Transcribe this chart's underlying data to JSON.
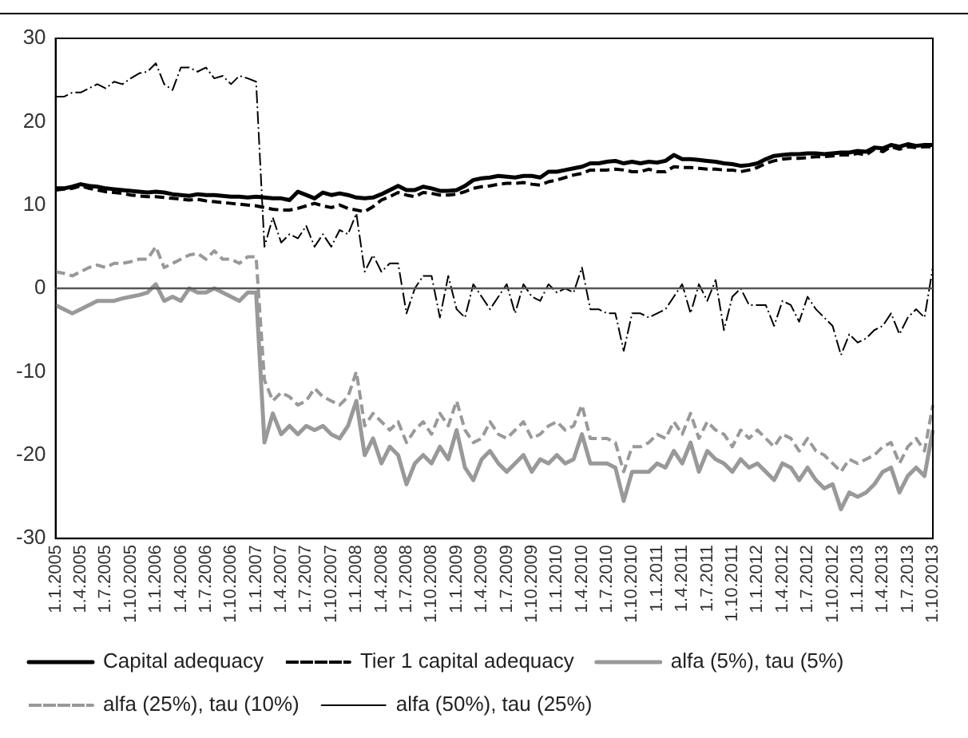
{
  "chart_data": {
    "type": "line",
    "categories": [
      "1.1.2005",
      null,
      null,
      "1.4.2005",
      null,
      null,
      "1.7.2005",
      null,
      null,
      "1.10.2005",
      null,
      null,
      "1.1.2006",
      null,
      null,
      "1.4.2006",
      null,
      null,
      "1.7.2006",
      null,
      null,
      "1.10.2006",
      null,
      null,
      "1.1.2007",
      null,
      null,
      "1.4.2007",
      null,
      null,
      "1.7.2007",
      null,
      null,
      "1.10.2007",
      null,
      null,
      "1.1.2008",
      null,
      null,
      "1.4.2008",
      null,
      null,
      "1.7.2008",
      null,
      null,
      "1.10.2008",
      null,
      null,
      "1.1.2009",
      null,
      null,
      "1.4.2009",
      null,
      null,
      "1.7.2009",
      null,
      null,
      "1.10.2009",
      null,
      null,
      "1.1.2010",
      null,
      null,
      "1.4.2010",
      null,
      null,
      "1.7.2010",
      null,
      null,
      "1.10.2010",
      null,
      null,
      "1.1.2011",
      null,
      null,
      "1.4.2011",
      null,
      null,
      "1.7.2011",
      null,
      null,
      "1.10.2011",
      null,
      null,
      "1.1.2012",
      null,
      null,
      "1.4.2012",
      null,
      null,
      "1.7.2012",
      null,
      null,
      "1.10.2012",
      null,
      null,
      "1.1.2013",
      null,
      null,
      "1.4.2013",
      null,
      null,
      "1.7.2013",
      null,
      null,
      "1.10.2013"
    ],
    "series": [
      {
        "name": "Capital adequacy",
        "color": "#000000",
        "line_style": "solid",
        "values": [
          12,
          12,
          12.2,
          12.5,
          12.3,
          12.2,
          12,
          11.9,
          11.8,
          11.7,
          11.6,
          11.5,
          11.6,
          11.5,
          11.3,
          11.2,
          11.1,
          11.3,
          11.2,
          11.2,
          11.1,
          11,
          11,
          10.9,
          11,
          10.9,
          10.8,
          10.8,
          10.6,
          11.6,
          11.2,
          10.8,
          11.5,
          11.2,
          11.4,
          11.2,
          10.9,
          10.8,
          10.9,
          11.3,
          11.8,
          12.3,
          11.8,
          11.8,
          12.2,
          12,
          11.7,
          11.7,
          11.8,
          12.3,
          13,
          13.2,
          13.3,
          13.5,
          13.4,
          13.3,
          13.5,
          13.5,
          13.3,
          14,
          14,
          14.2,
          14.4,
          14.6,
          15,
          15,
          15.2,
          15.3,
          15,
          15.2,
          15,
          15.2,
          15.1,
          15.3,
          16,
          15.5,
          15.5,
          15.4,
          15.3,
          15.2,
          15,
          14.9,
          14.7,
          14.8,
          15,
          15.5,
          15.9,
          16,
          16.1,
          16.1,
          16.2,
          16.2,
          16.1,
          16.2,
          16.3,
          16.3,
          16.5,
          16.4,
          16.9,
          16.8,
          17.2,
          17,
          17.3,
          17.1,
          17.2,
          17.2
        ]
      },
      {
        "name": "Tier 1 capital adequacy",
        "color": "#000000",
        "line_style": "dashed",
        "values": [
          11.8,
          11.9,
          12,
          12.3,
          12,
          11.8,
          11.6,
          11.5,
          11.4,
          11.2,
          11.1,
          11,
          11,
          10.9,
          10.8,
          10.7,
          10.6,
          10.7,
          10.5,
          10.4,
          10.3,
          10.2,
          10.1,
          10,
          9.9,
          9.7,
          9.5,
          9.4,
          9.4,
          9.6,
          9.9,
          10.2,
          9.9,
          9.7,
          10,
          9.6,
          9.4,
          9.2,
          9.8,
          10.6,
          11,
          11.5,
          11.2,
          11,
          11.5,
          11.4,
          11.2,
          11.2,
          11.3,
          11.6,
          12,
          12.2,
          12.3,
          12.5,
          12.6,
          12.6,
          12.7,
          12.5,
          12.4,
          12.8,
          13,
          13.3,
          13.6,
          13.8,
          14.2,
          14.2,
          14.2,
          14.3,
          14.2,
          14,
          14,
          14.3,
          14,
          14,
          14.6,
          14.5,
          14.5,
          14.4,
          14.3,
          14.3,
          14.2,
          14.2,
          14,
          14.2,
          14.5,
          15,
          15.3,
          15.5,
          15.6,
          15.6,
          15.7,
          15.8,
          15.8,
          15.9,
          16,
          16,
          16.2,
          16,
          16.7,
          16.4,
          17,
          16.7,
          17,
          16.9,
          17,
          17
        ]
      },
      {
        "name": "alfa (5%), tau (5%)",
        "color": "#999999",
        "line_style": "solid",
        "values": [
          -2,
          -2.5,
          -3,
          -2.5,
          -2,
          -1.5,
          -1.5,
          -1.5,
          -1.2,
          -1,
          -0.8,
          -0.5,
          0.5,
          -1.5,
          -1,
          -1.5,
          0,
          -0.5,
          -0.5,
          0,
          -0.5,
          -1,
          -1.5,
          -0.5,
          -0.5,
          -18.5,
          -15,
          -17.5,
          -16.5,
          -17.5,
          -16.5,
          -17,
          -16.5,
          -17.5,
          -18,
          -16.5,
          -13.5,
          -20,
          -18,
          -21,
          -19,
          -20,
          -23.5,
          -21,
          -20,
          -21,
          -19,
          -20.5,
          -17,
          -21.5,
          -23,
          -20.5,
          -19.5,
          -21,
          -22,
          -21,
          -20,
          -22,
          -20.5,
          -21,
          -20,
          -21,
          -20.5,
          -17.5,
          -21,
          -21,
          -21,
          -21.5,
          -25.5,
          -22,
          -22,
          -22,
          -21,
          -21.5,
          -19.5,
          -21,
          -18.5,
          -22,
          -19.5,
          -20.5,
          -21,
          -22,
          -20.5,
          -21.5,
          -21,
          -22,
          -23,
          -21,
          -21.5,
          -23,
          -21.5,
          -23,
          -24,
          -23.5,
          -26.5,
          -24.5,
          -25,
          -24.5,
          -23.5,
          -22,
          -21.5,
          -24.5,
          -22.5,
          -21.5,
          -22.5,
          -17
        ]
      },
      {
        "name": "alfa (25%), tau (10%)",
        "color": "#999999",
        "line_style": "dashed",
        "values": [
          2,
          1.8,
          1.5,
          2,
          2.5,
          2.8,
          2.5,
          3,
          3,
          3.2,
          3.5,
          3.5,
          5,
          2.5,
          3,
          3.5,
          4,
          4.2,
          3.5,
          4.5,
          3.5,
          3.5,
          3,
          3.8,
          3.8,
          -11,
          -13.5,
          -12.5,
          -13,
          -14,
          -13.5,
          -12,
          -13,
          -13.5,
          -14,
          -13,
          -10,
          -16.5,
          -15,
          -16,
          -17,
          -16,
          -18.5,
          -17,
          -16,
          -17.5,
          -15,
          -16.5,
          -13.5,
          -17,
          -18.5,
          -18,
          -16,
          -17.5,
          -18,
          -17,
          -16,
          -18,
          -17.5,
          -16.5,
          -16,
          -17,
          -16.5,
          -14,
          -18,
          -18,
          -18,
          -18.5,
          -22,
          -19,
          -19,
          -18.5,
          -17.5,
          -18,
          -16,
          -17.5,
          -15,
          -18,
          -16,
          -17,
          -17.5,
          -19,
          -17,
          -18,
          -17,
          -18,
          -19,
          -17.5,
          -18,
          -19.5,
          -18,
          -19.5,
          -20,
          -21,
          -22,
          -20.5,
          -21,
          -20.5,
          -20,
          -19,
          -18.5,
          -21,
          -19,
          -18,
          -19.5,
          -14
        ]
      },
      {
        "name": "alfa (50%), tau (25%)",
        "color": "#000000",
        "line_style": "dashdot",
        "values": [
          23,
          23,
          23.5,
          23.5,
          24,
          24.5,
          24,
          24.8,
          24.5,
          25.2,
          25.8,
          26,
          27,
          24.5,
          23.8,
          26.5,
          26.5,
          26,
          26.5,
          25.2,
          25.5,
          24.5,
          25.5,
          25.2,
          24.8,
          5,
          8.5,
          5.5,
          6.5,
          6,
          7.5,
          5,
          6.5,
          5,
          7,
          6.5,
          9,
          2,
          4,
          2,
          3,
          3,
          -3,
          0,
          1.5,
          1.5,
          -3.5,
          1.5,
          -2.5,
          -3.5,
          0.5,
          -1,
          -2.5,
          -1,
          0.5,
          -3,
          0.5,
          -1,
          -1.5,
          0.5,
          -0.5,
          0,
          -0.5,
          2.5,
          -2.5,
          -2.5,
          -3,
          -3,
          -7.5,
          -3,
          -3,
          -3.5,
          -3,
          -2.5,
          -1,
          0.5,
          -3,
          0.5,
          -1.5,
          1,
          -5,
          -1,
          0,
          -2,
          -2,
          -2,
          -4.5,
          -1.5,
          -2,
          -4,
          -1,
          -2.5,
          -3.5,
          -4.5,
          -8,
          -5.5,
          -6.5,
          -6,
          -5,
          -4.5,
          -3,
          -5.5,
          -3.5,
          -2.5,
          -3.5,
          2.5
        ]
      }
    ],
    "ylim": [
      -30,
      30
    ],
    "yticks": [
      -30,
      -20,
      -10,
      0,
      10,
      20,
      30
    ],
    "ref_lines": [
      {
        "axis": "y",
        "value": 0,
        "color": "#555555"
      }
    ],
    "grid": false,
    "legend": "bottom",
    "marker": "none"
  }
}
